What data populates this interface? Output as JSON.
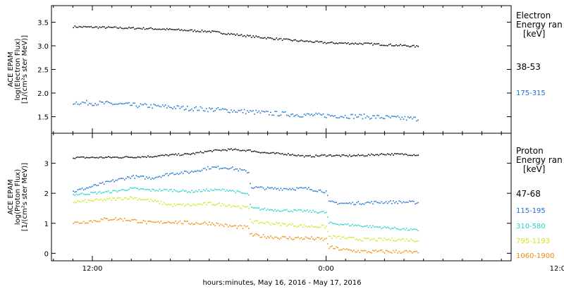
{
  "colors": {
    "black": "#000000",
    "blue": "#1f6fd0",
    "cyan": "#22d3c8",
    "yellow": "#d7e21c",
    "orange": "#ef8a0e"
  },
  "chart_data": [
    {
      "type": "scatter",
      "panel": "electron",
      "ylabel_lines": [
        "ACE EPAM",
        "log(Electron Flux)",
        "[1/(cm²s ster MeV)]"
      ],
      "ylim": [
        1.15,
        3.85
      ],
      "yticks": [
        1.5,
        2.0,
        2.5,
        3.0,
        3.5
      ],
      "ytick_labels": [
        "1.5",
        "2.0",
        "2.5",
        "3.0",
        "3.5"
      ],
      "legend_title": [
        "Electron",
        "Energy ran",
        "[keV]"
      ],
      "series": [
        {
          "name": "38-53",
          "color": "black",
          "x": [
            -2.0,
            2,
            4,
            6,
            8,
            10,
            12,
            14,
            16,
            18,
            20,
            22,
            24,
            26,
            28,
            30,
            32,
            33.5
          ],
          "y": [
            3.4,
            3.38,
            3.37,
            3.36,
            3.34,
            3.32,
            3.3,
            3.25,
            3.2,
            3.16,
            3.12,
            3.09,
            3.06,
            3.05,
            3.04,
            3.02,
            3.0,
            2.98
          ],
          "noise": 0.02
        },
        {
          "name": "175-315",
          "color": "blue",
          "x": [
            -2.0,
            2,
            4,
            6,
            8,
            10,
            12,
            14,
            16,
            18,
            20,
            22,
            24,
            26,
            28,
            30,
            32,
            33.5
          ],
          "y": [
            1.8,
            1.77,
            1.74,
            1.72,
            1.7,
            1.67,
            1.65,
            1.63,
            1.6,
            1.57,
            1.55,
            1.53,
            1.52,
            1.51,
            1.5,
            1.48,
            1.46,
            1.45
          ],
          "noise": 0.05
        }
      ]
    },
    {
      "type": "scatter",
      "panel": "proton",
      "ylabel_lines": [
        "ACE EPAM",
        "log(Proton Flux)",
        "[1/(cm²s ster MeV)]"
      ],
      "ylim": [
        -0.25,
        4.0
      ],
      "yticks": [
        0,
        1,
        2,
        3
      ],
      "ytick_labels": [
        "0",
        "1",
        "2",
        "3"
      ],
      "legend_title": [
        "Proton",
        "Energy ran",
        "[keV]"
      ],
      "series": [
        {
          "name": "47-68",
          "color": "black",
          "x": [
            -2.0,
            2,
            4,
            6,
            8,
            10,
            12,
            14,
            16,
            18,
            20,
            22,
            24,
            26,
            28,
            30,
            32,
            33.5
          ],
          "y": [
            3.18,
            3.19,
            3.2,
            3.22,
            3.27,
            3.3,
            3.4,
            3.45,
            3.42,
            3.33,
            3.3,
            3.22,
            3.26,
            3.24,
            3.26,
            3.3,
            3.29,
            3.27
          ],
          "noise": 0.03
        },
        {
          "name": "115-195",
          "color": "blue",
          "x": [
            -2.0,
            2,
            4,
            6,
            8,
            10,
            12,
            14,
            16,
            16.2,
            18,
            20,
            22,
            24,
            24.2,
            26,
            28,
            30,
            32,
            33.5
          ],
          "y": [
            2.05,
            2.4,
            2.55,
            2.5,
            2.65,
            2.7,
            2.85,
            2.85,
            2.7,
            2.2,
            2.15,
            2.15,
            2.15,
            2.05,
            1.7,
            1.65,
            1.68,
            1.7,
            1.7,
            1.68
          ],
          "noise": 0.05
        },
        {
          "name": "310-580",
          "color": "cyan",
          "x": [
            -2.0,
            2,
            4,
            6,
            8,
            10,
            12,
            14,
            16,
            16.2,
            18,
            20,
            22,
            24,
            24.2,
            26,
            28,
            30,
            32,
            33.5
          ],
          "y": [
            1.95,
            2.05,
            2.15,
            2.1,
            2.1,
            2.05,
            2.1,
            2.1,
            1.95,
            1.5,
            1.45,
            1.42,
            1.4,
            1.35,
            1.0,
            0.95,
            0.9,
            0.85,
            0.8,
            0.75
          ],
          "noise": 0.04
        },
        {
          "name": "795-1193",
          "color": "yellow",
          "x": [
            -2.0,
            2,
            4,
            6,
            8,
            10,
            12,
            14,
            16,
            16.2,
            18,
            20,
            22,
            24,
            24.2,
            26,
            28,
            30,
            32,
            33.5
          ],
          "y": [
            1.7,
            1.8,
            1.85,
            1.75,
            1.6,
            1.6,
            1.65,
            1.6,
            1.5,
            1.05,
            1.0,
            0.95,
            0.9,
            0.88,
            0.55,
            0.5,
            0.45,
            0.45,
            0.45,
            0.42
          ],
          "noise": 0.05
        },
        {
          "name": "1060-1900",
          "color": "orange",
          "x": [
            -2.0,
            2,
            4,
            6,
            8,
            10,
            12,
            14,
            16,
            16.2,
            18,
            20,
            22,
            24,
            24.2,
            26,
            28,
            30,
            32,
            33.5
          ],
          "y": [
            1.0,
            1.15,
            1.1,
            1.0,
            1.05,
            1.0,
            1.0,
            0.9,
            0.85,
            0.6,
            0.55,
            0.5,
            0.5,
            0.45,
            0.2,
            0.1,
            0.05,
            0.05,
            0.05,
            0.0
          ],
          "noise": 0.06
        }
      ]
    }
  ],
  "x_axis": {
    "range_hours": [
      -4.2,
      43.0
    ],
    "major_hours": [
      0,
      24,
      48
    ],
    "major_labels": [
      "12:00",
      "0:00",
      "12:00"
    ],
    "xlabel": "hours:minutes, May 16, 2016 - May 17, 2016"
  }
}
